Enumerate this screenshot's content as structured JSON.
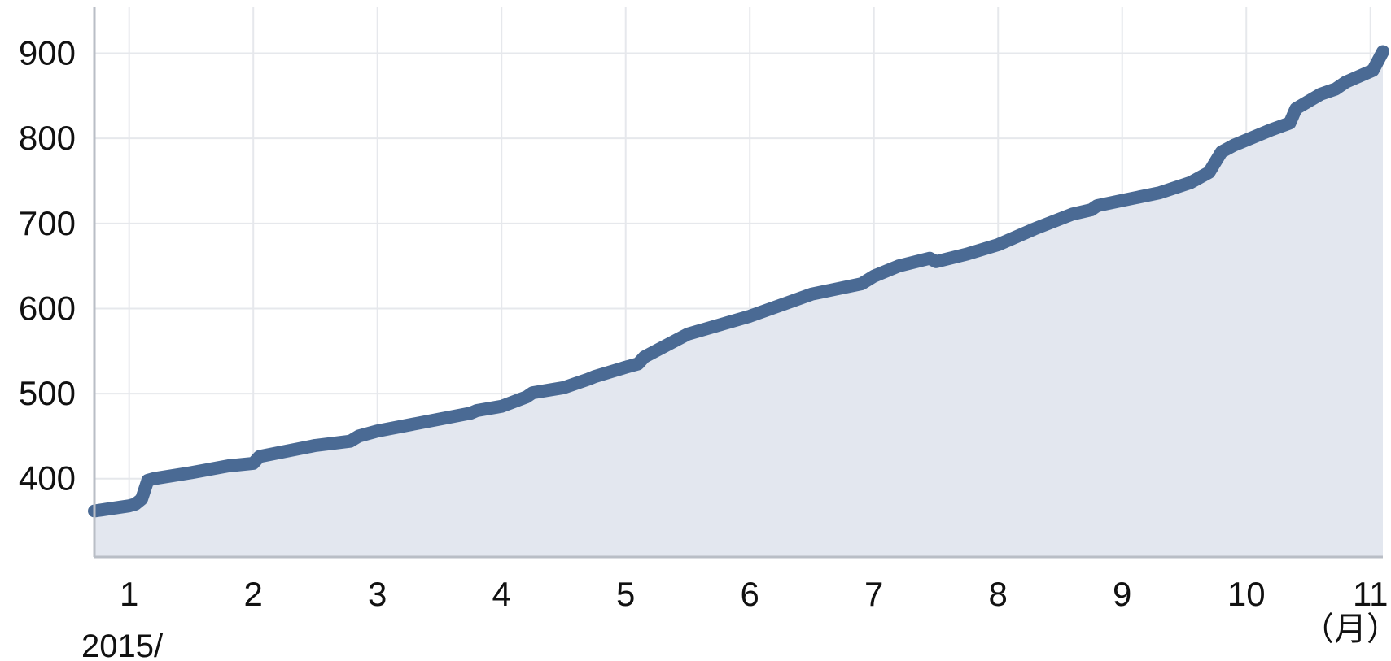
{
  "chart_data": {
    "type": "area",
    "title": "",
    "xlabel": "",
    "ylabel": "",
    "year_label": "2015/",
    "x_unit_label": "（月）",
    "x_ticks": [
      "1",
      "2",
      "3",
      "4",
      "5",
      "6",
      "7",
      "8",
      "9",
      "10",
      "11"
    ],
    "y_ticks": [
      "400",
      "500",
      "600",
      "700",
      "800",
      "900"
    ],
    "xlim": [
      0.72,
      11.1
    ],
    "ylim": [
      308,
      955
    ],
    "grid": true,
    "legend": "none",
    "colors": {
      "line": "#4a6a94",
      "fill": "#e3e7ef",
      "grid": "#e6e8ec",
      "axis": "#b9bec6"
    },
    "series": [
      {
        "x": [
          0.72,
          1.0,
          1.05,
          1.1,
          1.15,
          1.2,
          1.5,
          1.8,
          2.0,
          2.05,
          2.5,
          2.78,
          2.85,
          3.0,
          3.5,
          3.75,
          3.8,
          4.0,
          4.2,
          4.25,
          4.5,
          4.7,
          4.75,
          5.0,
          5.1,
          5.15,
          5.5,
          6.0,
          6.5,
          6.9,
          7.0,
          7.2,
          7.45,
          7.5,
          7.75,
          8.0,
          8.3,
          8.6,
          8.75,
          8.8,
          9.0,
          9.3,
          9.55,
          9.7,
          9.8,
          9.9,
          10.2,
          10.35,
          10.4,
          10.6,
          10.72,
          10.8,
          11.02,
          11.1
        ],
        "values": [
          362,
          368,
          370,
          376,
          398,
          400,
          407,
          415,
          418,
          426,
          439,
          444,
          450,
          456,
          470,
          477,
          480,
          485,
          496,
          501,
          507,
          517,
          520,
          531,
          535,
          543,
          570,
          591,
          617,
          629,
          638,
          650,
          659,
          655,
          664,
          675,
          694,
          711,
          716,
          721,
          727,
          736,
          748,
          760,
          784,
          792,
          810,
          818,
          835,
          852,
          858,
          866,
          880,
          902
        ]
      }
    ]
  }
}
